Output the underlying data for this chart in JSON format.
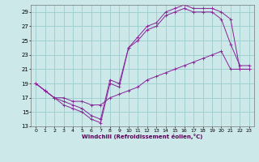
{
  "xlabel": "Windchill (Refroidissement éolien,°C)",
  "ylabel": "",
  "bg_color": "#cce8e8",
  "grid_color": "#99cccc",
  "line_color": "#882299",
  "xlim": [
    -0.5,
    23.5
  ],
  "ylim": [
    13,
    30
  ],
  "xticks": [
    0,
    1,
    2,
    3,
    4,
    5,
    6,
    7,
    8,
    9,
    10,
    11,
    12,
    13,
    14,
    15,
    16,
    17,
    18,
    19,
    20,
    21,
    22,
    23
  ],
  "yticks": [
    13,
    15,
    17,
    19,
    21,
    23,
    25,
    27,
    29
  ],
  "line1_x": [
    0,
    1,
    2,
    3,
    4,
    5,
    6,
    7,
    8,
    9,
    10,
    11,
    12,
    13,
    14,
    15,
    16,
    17,
    18,
    19,
    20,
    21,
    22,
    23
  ],
  "line1_y": [
    19,
    18,
    17,
    17,
    16.5,
    16.5,
    16,
    16,
    17,
    17.5,
    18,
    18.5,
    19.5,
    20,
    20.5,
    21,
    21.5,
    22,
    22.5,
    23,
    23.5,
    21,
    21,
    21
  ],
  "line2_x": [
    0,
    1,
    2,
    3,
    4,
    5,
    6,
    7,
    8,
    9,
    10,
    11,
    12,
    13,
    14,
    15,
    16,
    17,
    18,
    19,
    20,
    21,
    22,
    23
  ],
  "line2_y": [
    19,
    18,
    17,
    16,
    15.5,
    15,
    14,
    13.5,
    19,
    18.5,
    24,
    25,
    26.5,
    27,
    28.5,
    29,
    29.5,
    29,
    29,
    29,
    28,
    24.5,
    21.5,
    21.5
  ],
  "line3_x": [
    0,
    1,
    2,
    3,
    4,
    5,
    6,
    7,
    8,
    9,
    10,
    11,
    12,
    13,
    14,
    15,
    16,
    17,
    18,
    19,
    20,
    21,
    22,
    23
  ],
  "line3_y": [
    19,
    18,
    17,
    16.5,
    16,
    15.5,
    14.5,
    14,
    19.5,
    19,
    24,
    25.5,
    27,
    27.5,
    29,
    29.5,
    30,
    29.5,
    29.5,
    29.5,
    29,
    28,
    21,
    21
  ]
}
